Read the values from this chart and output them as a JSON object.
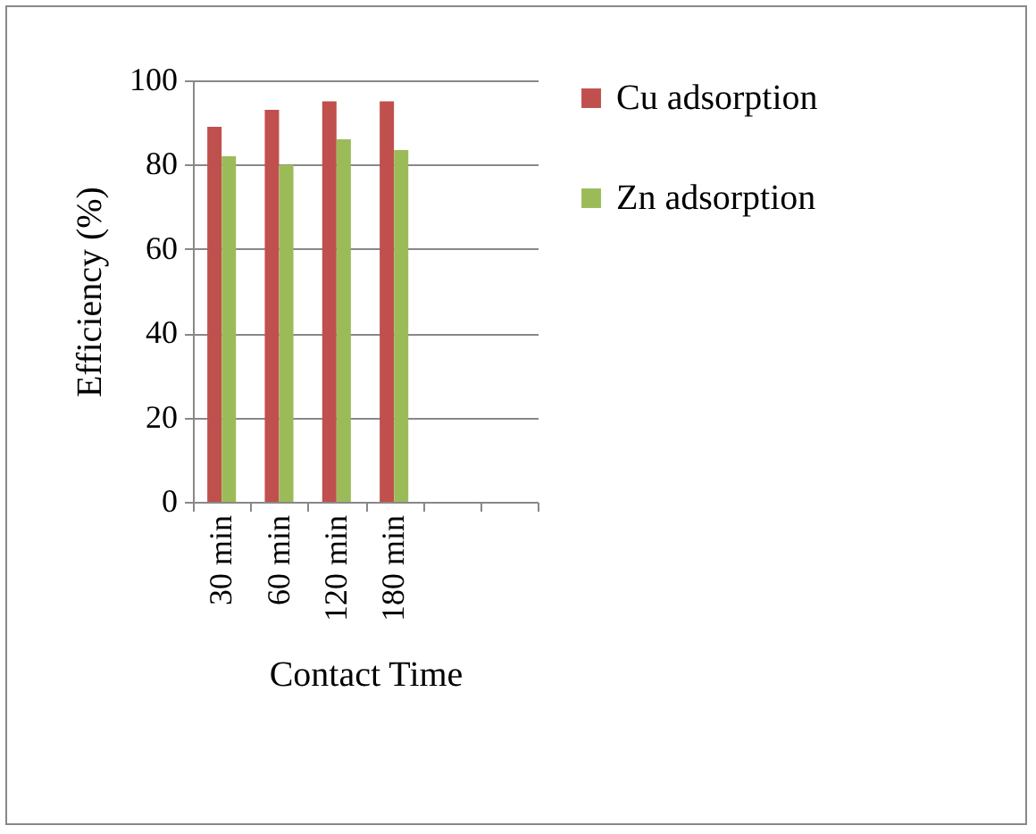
{
  "chart_data": {
    "type": "bar",
    "xlabel": "Contact Time",
    "ylabel": "Efficiency (%)",
    "categories": [
      "30 min",
      "60 min",
      "120 min",
      "180 min",
      null,
      null
    ],
    "series": [
      {
        "name": "Cu adsorption",
        "color": "#c0504d",
        "values": [
          89,
          93,
          95,
          95,
          null,
          null
        ]
      },
      {
        "name": "Zn adsorption",
        "color": "#9bbb59",
        "values": [
          82,
          80,
          86,
          83.5,
          null,
          null
        ]
      }
    ],
    "ylim": [
      0,
      100
    ],
    "yticks": [
      0,
      20,
      40,
      60,
      80,
      100
    ],
    "grid": "y",
    "legend": "right"
  }
}
